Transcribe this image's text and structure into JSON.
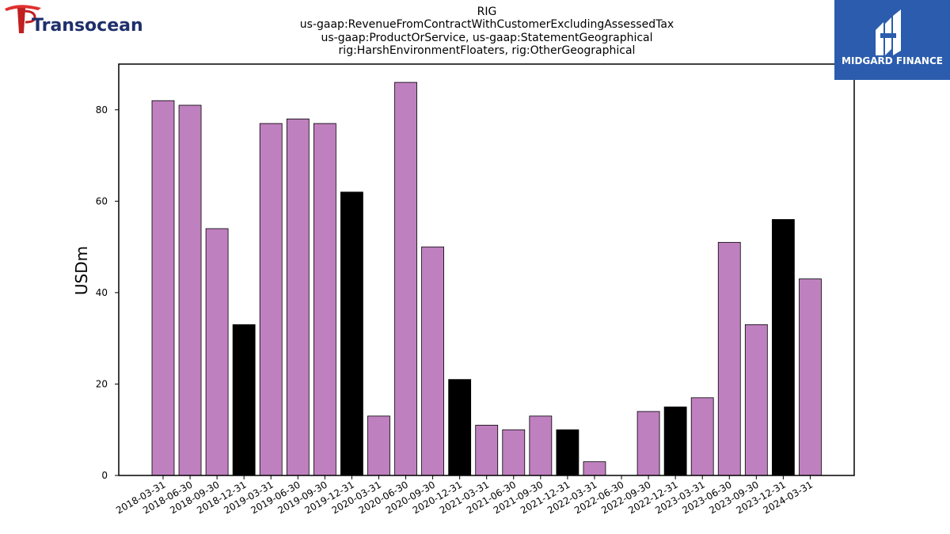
{
  "header": {
    "company_logo_text": "Transocean",
    "corner_logo_text": "MIDGARD FINANCE"
  },
  "chart_data": {
    "type": "bar",
    "title_lines": [
      "RIG",
      "us-gaap:RevenueFromContractWithCustomerExcludingAssessedTax",
      "us-gaap:ProductOrService, us-gaap:StatementGeographical",
      "rig:HarshEnvironmentFloaters, rig:OtherGeographical"
    ],
    "xlabel": "",
    "ylabel": "USDm",
    "ylim": [
      0,
      90
    ],
    "yticks": [
      0,
      20,
      40,
      60,
      80
    ],
    "grid": false,
    "categories": [
      "2018-03-31",
      "2018-06-30",
      "2018-09-30",
      "2018-12-31",
      "2019-03-31",
      "2019-06-30",
      "2019-09-30",
      "2019-12-31",
      "2020-03-31",
      "2020-06-30",
      "2020-09-30",
      "2020-12-31",
      "2021-03-31",
      "2021-06-30",
      "2021-09-30",
      "2021-12-31",
      "2022-03-31",
      "2022-06-30",
      "2022-09-30",
      "2022-12-31",
      "2023-03-31",
      "2023-06-30",
      "2023-09-30",
      "2023-12-31",
      "2024-03-31"
    ],
    "values": [
      82,
      81,
      54,
      33,
      77,
      78,
      77,
      62,
      13,
      86,
      50,
      21,
      11,
      10,
      13,
      10,
      3,
      0,
      14,
      15,
      17,
      51,
      33,
      56,
      43
    ],
    "bar_colors": {
      "quarter": "#bf80bf",
      "year_end": "#000000"
    },
    "year_end_flags": [
      false,
      false,
      false,
      true,
      false,
      false,
      false,
      true,
      false,
      false,
      false,
      true,
      false,
      false,
      false,
      true,
      false,
      false,
      false,
      true,
      false,
      false,
      false,
      true,
      false
    ]
  }
}
